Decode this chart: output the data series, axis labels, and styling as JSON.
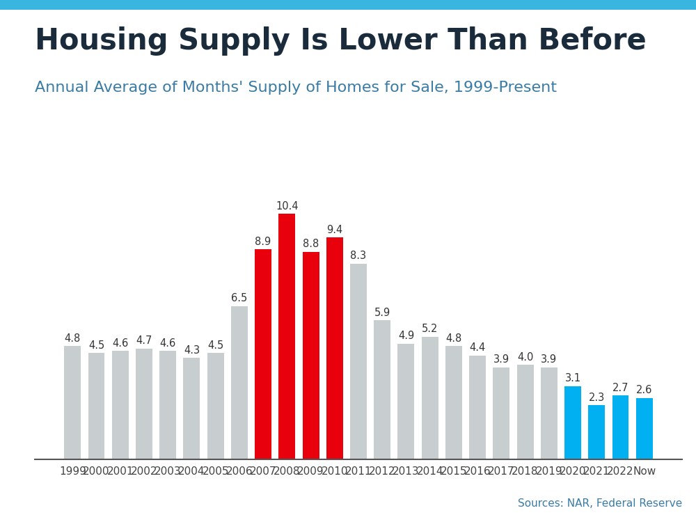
{
  "title": "Housing Supply Is Lower Than Before",
  "subtitle": "Annual Average of Months' Supply of Homes for Sale, 1999-Present",
  "source": "Sources: NAR, Federal Reserve",
  "categories": [
    "1999",
    "2000",
    "2001",
    "2002",
    "2003",
    "2004",
    "2005",
    "2006",
    "2007",
    "2008",
    "2009",
    "2010",
    "2011",
    "2012",
    "2013",
    "2014",
    "2015",
    "2016",
    "2017",
    "2018",
    "2019",
    "2020",
    "2021",
    "2022",
    "Now"
  ],
  "values": [
    4.8,
    4.5,
    4.6,
    4.7,
    4.6,
    4.3,
    4.5,
    6.5,
    8.9,
    10.4,
    8.8,
    9.4,
    8.3,
    5.9,
    4.9,
    5.2,
    4.8,
    4.4,
    3.9,
    4.0,
    3.9,
    3.1,
    2.3,
    2.7,
    2.6
  ],
  "colors": [
    "#c8cdd0",
    "#c8cdd0",
    "#c8cdd0",
    "#c8cdd0",
    "#c8cdd0",
    "#c8cdd0",
    "#c8cdd0",
    "#c8cdd0",
    "#e8000d",
    "#e8000d",
    "#e8000d",
    "#e8000d",
    "#c8cdd0",
    "#c8cdd0",
    "#c8cdd0",
    "#c8cdd0",
    "#c8cdd0",
    "#c8cdd0",
    "#c8cdd0",
    "#c8cdd0",
    "#c8cdd0",
    "#00b0f0",
    "#00b0f0",
    "#00b0f0",
    "#00b0f0"
  ],
  "title_color": "#1a2b3c",
  "subtitle_color": "#3a7ca5",
  "source_color": "#3a7ca5",
  "top_bar_color": "#3ab4e0",
  "background_color": "#ffffff",
  "title_fontsize": 30,
  "subtitle_fontsize": 16,
  "label_fontsize": 10.5,
  "source_fontsize": 11,
  "tick_fontsize": 11,
  "ylim": [
    0,
    11.5
  ]
}
